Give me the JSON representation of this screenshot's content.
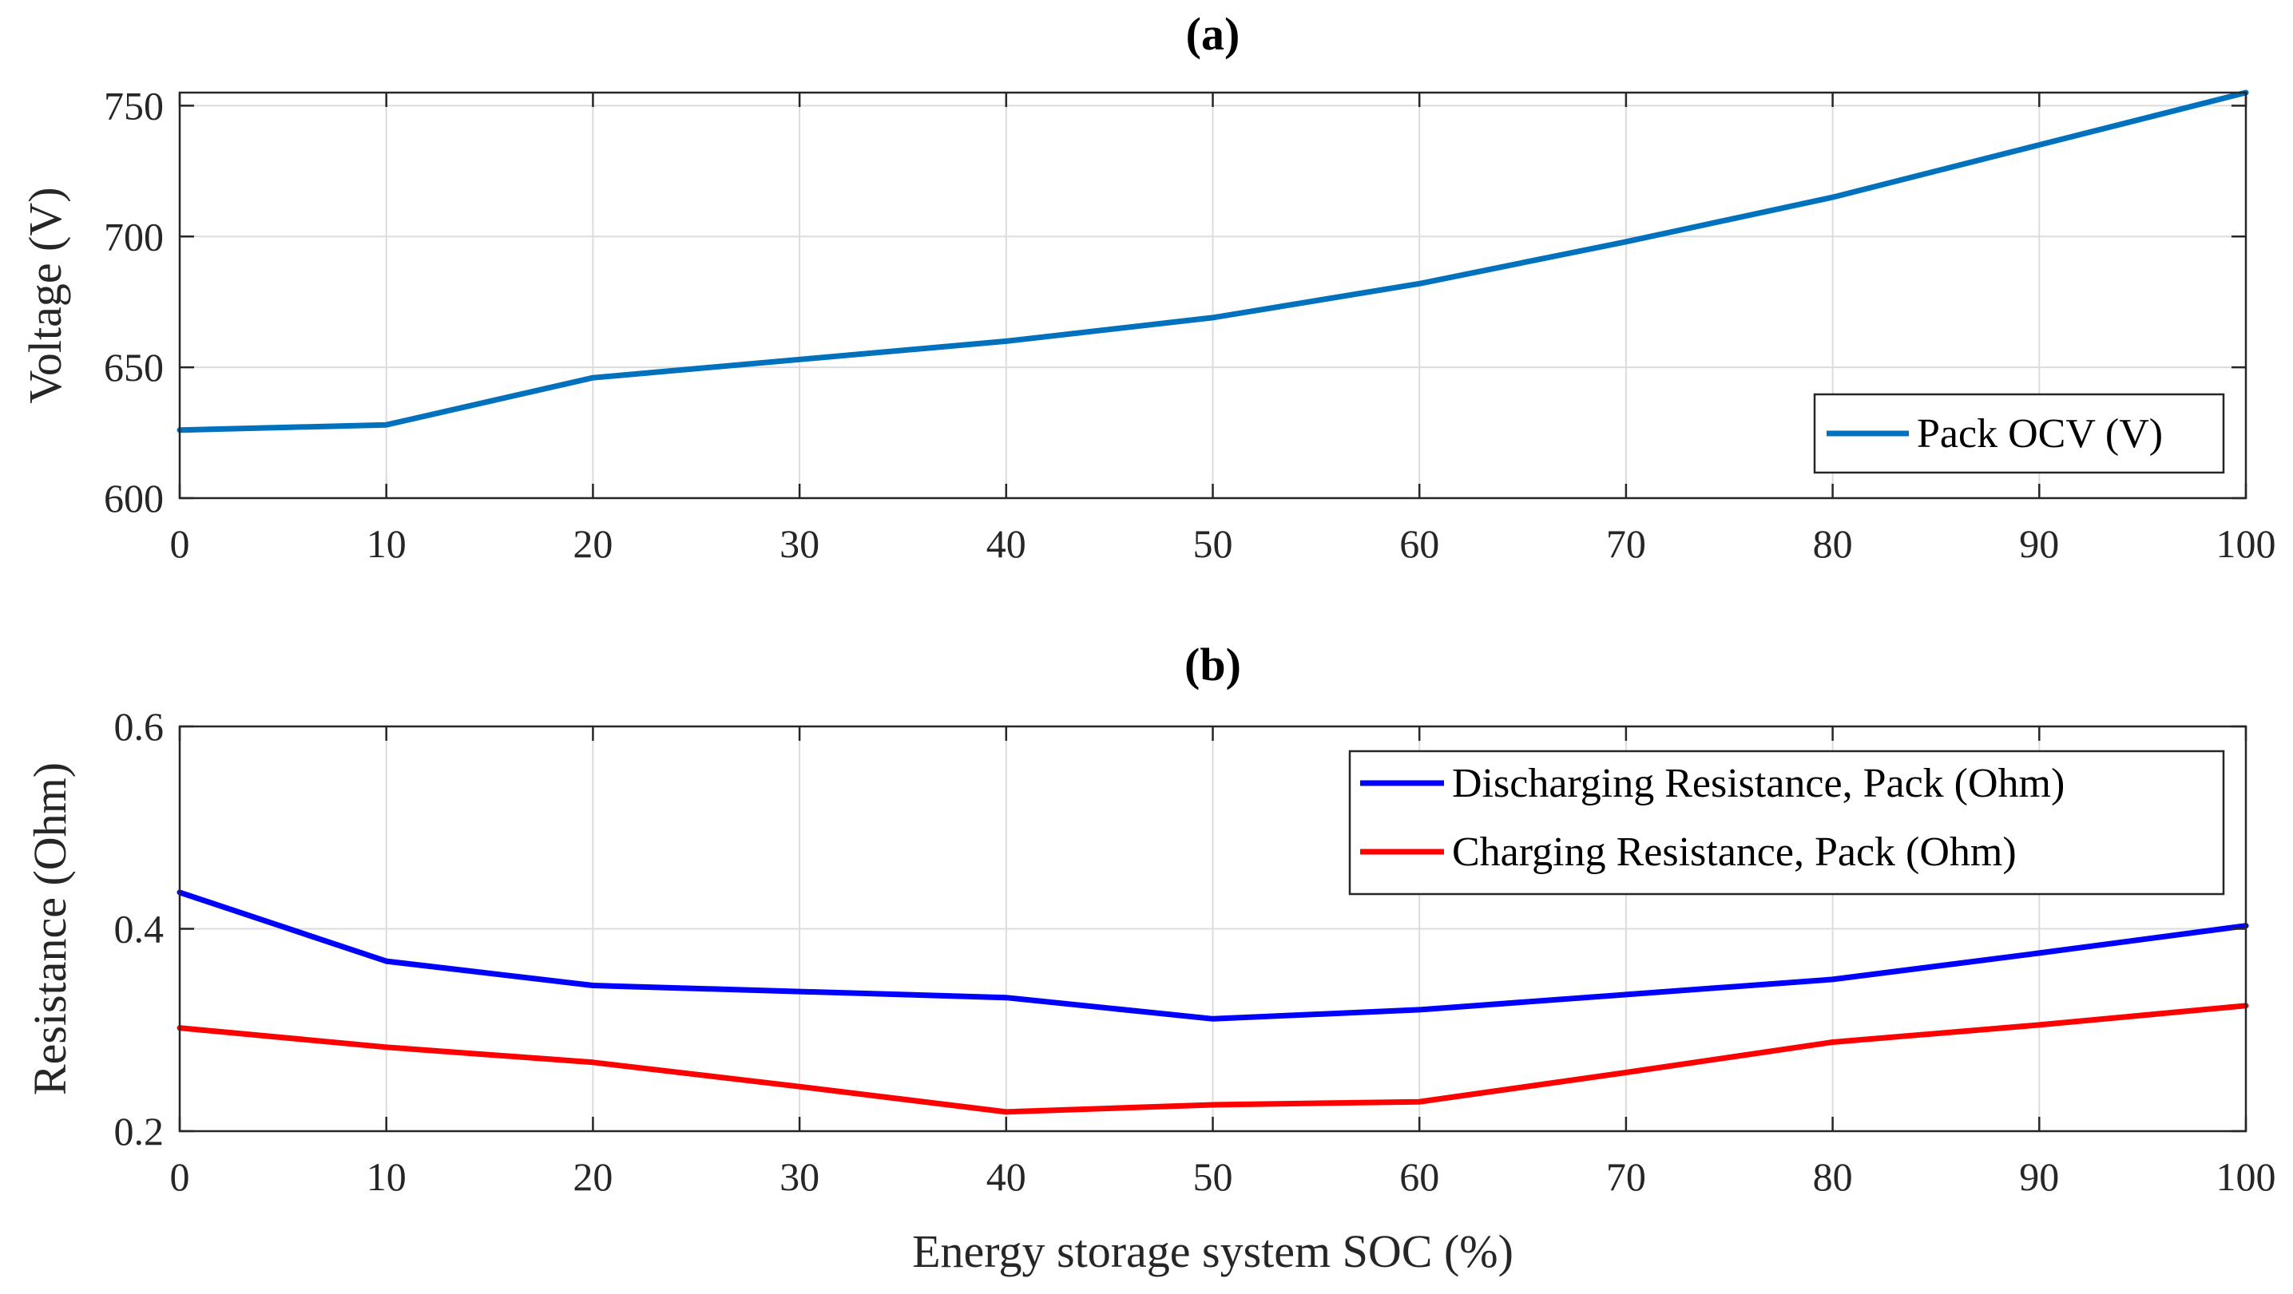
{
  "chart_data": [
    {
      "id": "a",
      "type": "line",
      "title": "(a)",
      "xlabel": "",
      "ylabel": "Voltage (V)",
      "xlim": [
        0,
        100
      ],
      "ylim": [
        600,
        755
      ],
      "xticks": [
        0,
        10,
        20,
        30,
        40,
        50,
        60,
        70,
        80,
        90,
        100
      ],
      "yticks": [
        600,
        650,
        700,
        750
      ],
      "grid": true,
      "legend_position": "bottom-right",
      "series": [
        {
          "name": "Pack OCV (V)",
          "color": "#0072BD",
          "x": [
            0,
            10,
            20,
            30,
            40,
            50,
            60,
            70,
            80,
            90,
            100
          ],
          "y": [
            626,
            628,
            646,
            653,
            660,
            669,
            682,
            698,
            715,
            735,
            755
          ]
        }
      ]
    },
    {
      "id": "b",
      "type": "line",
      "title": "(b)",
      "xlabel": "Energy storage system SOC (%)",
      "ylabel": "Resistance (Ohm)",
      "xlim": [
        0,
        100
      ],
      "ylim": [
        0.2,
        0.6
      ],
      "xticks": [
        0,
        10,
        20,
        30,
        40,
        50,
        60,
        70,
        80,
        90,
        100
      ],
      "yticks": [
        0.2,
        0.4,
        0.6
      ],
      "grid": true,
      "legend_position": "top-right",
      "series": [
        {
          "name": "Discharging Resistance, Pack (Ohm)",
          "color": "#0000FF",
          "x": [
            0,
            10,
            20,
            30,
            40,
            50,
            60,
            70,
            80,
            90,
            100
          ],
          "y": [
            0.436,
            0.368,
            0.344,
            0.338,
            0.332,
            0.311,
            0.32,
            0.335,
            0.35,
            0.376,
            0.403
          ]
        },
        {
          "name": "Charging Resistance, Pack (Ohm)",
          "color": "#FF0000",
          "x": [
            0,
            10,
            20,
            30,
            40,
            50,
            60,
            70,
            80,
            90,
            100
          ],
          "y": [
            0.302,
            0.283,
            0.268,
            0.244,
            0.219,
            0.226,
            0.229,
            0.258,
            0.288,
            0.305,
            0.324
          ]
        }
      ]
    }
  ]
}
